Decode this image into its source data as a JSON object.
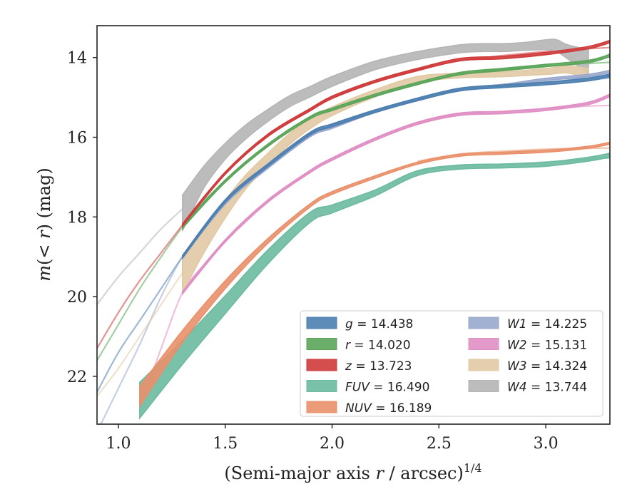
{
  "chart_data": {
    "type": "line",
    "xlabel": "(Semi-major axis r / arcsec)^1/4",
    "xlabel_parts": {
      "prefix": "(Semi-major axis ",
      "var": "r",
      "suffix": " / arcsec)",
      "sup": "1/4"
    },
    "ylabel": "m(< r) (mag)",
    "ylabel_parts": {
      "m": "m",
      "open": "(",
      "lt": "< ",
      "r": "r",
      "close": ")",
      "unit": " (mag)"
    },
    "xlim": [
      0.9,
      3.3
    ],
    "ylim": [
      23.2,
      13.2
    ],
    "y_inverted": true,
    "x_ticks": [
      1.0,
      1.5,
      2.0,
      2.5,
      3.0
    ],
    "x_tick_labels": [
      "1.0",
      "1.5",
      "2.0",
      "2.5",
      "3.0"
    ],
    "y_ticks": [
      14,
      16,
      18,
      20,
      22
    ],
    "y_tick_labels": [
      "14",
      "16",
      "18",
      "20",
      "22"
    ],
    "grid": false,
    "legend_position": "lower-right",
    "series": [
      {
        "name": "g = 14.438",
        "band": "g",
        "mag": "14.438",
        "color": "#4c7fb0",
        "x": [
          1.3,
          1.5,
          1.7,
          1.9,
          2.0,
          2.2,
          2.4,
          2.6,
          2.8,
          3.0,
          3.2,
          3.3
        ],
        "y": [
          19.0,
          17.6,
          16.7,
          15.9,
          15.7,
          15.35,
          15.05,
          14.8,
          14.72,
          14.65,
          14.55,
          14.45
        ],
        "band_width": 0.07,
        "model_x": [
          0.9,
          1.0,
          1.1,
          1.2,
          1.3,
          1.4,
          1.5,
          1.6,
          1.7,
          1.8,
          1.9,
          2.0,
          2.2,
          2.4,
          2.6,
          2.8,
          3.0,
          3.2,
          3.3
        ],
        "model_y": [
          22.4,
          21.4,
          20.6,
          19.8,
          19.0,
          18.3,
          17.6,
          17.1,
          16.7,
          16.3,
          15.9,
          15.7,
          15.35,
          15.05,
          14.82,
          14.72,
          14.63,
          14.5,
          14.45
        ]
      },
      {
        "name": "r = 14.020",
        "band": "r",
        "mag": "14.020",
        "color": "#5aa55a",
        "x": [
          1.3,
          1.5,
          1.7,
          1.9,
          2.0,
          2.2,
          2.4,
          2.6,
          2.8,
          3.0,
          3.2,
          3.3
        ],
        "y": [
          18.25,
          17.1,
          16.2,
          15.5,
          15.3,
          14.95,
          14.65,
          14.4,
          14.3,
          14.2,
          14.1,
          13.95
        ],
        "band_width": 0.06,
        "model_x": [
          0.9,
          1.0,
          1.1,
          1.2,
          1.3,
          1.4,
          1.5,
          1.6,
          1.7,
          1.8,
          1.9,
          2.0,
          2.2,
          2.4,
          2.6,
          2.8,
          3.0,
          3.2,
          3.3
        ],
        "model_y": [
          21.6,
          20.7,
          19.8,
          19.0,
          18.25,
          17.6,
          17.1,
          16.6,
          16.2,
          15.8,
          15.5,
          15.3,
          14.95,
          14.65,
          14.42,
          14.3,
          14.22,
          14.15,
          14.12
        ]
      },
      {
        "name": "z = 13.723",
        "band": "z",
        "mag": "13.723",
        "color": "#cf3b3b",
        "x": [
          1.3,
          1.5,
          1.7,
          1.9,
          2.0,
          2.2,
          2.4,
          2.6,
          2.8,
          3.0,
          3.2,
          3.3
        ],
        "y": [
          18.2,
          16.9,
          15.95,
          15.3,
          15.0,
          14.6,
          14.3,
          14.05,
          14.0,
          13.9,
          13.75,
          13.6
        ],
        "band_width": 0.06,
        "model_x": [
          0.9,
          1.0,
          1.1,
          1.2,
          1.3,
          1.4,
          1.5,
          1.6,
          1.7,
          1.8,
          1.9,
          2.0,
          2.2,
          2.4,
          2.6,
          2.8,
          3.0,
          3.2,
          3.3
        ],
        "model_y": [
          21.3,
          20.4,
          19.6,
          18.9,
          18.2,
          17.5,
          16.9,
          16.4,
          15.95,
          15.6,
          15.3,
          15.0,
          14.6,
          14.3,
          14.08,
          13.95,
          13.85,
          13.78,
          13.75
        ]
      },
      {
        "name": "FUV = 16.490",
        "band": "FUV",
        "mag": "16.490",
        "color": "#6cbaa0",
        "x": [
          1.1,
          1.3,
          1.5,
          1.7,
          1.9,
          2.0,
          2.2,
          2.4,
          2.6,
          2.8,
          3.0,
          3.2,
          3.3
        ],
        "y": [
          22.6,
          21.4,
          20.2,
          19.0,
          18.0,
          17.8,
          17.4,
          16.9,
          16.75,
          16.72,
          16.68,
          16.55,
          16.45
        ],
        "band_width": 0.45,
        "band_widths": [
          0.9,
          0.6,
          0.45,
          0.35,
          0.25,
          0.2,
          0.15,
          0.12,
          0.1,
          0.1,
          0.1,
          0.1,
          0.1
        ],
        "model_x": [
          2.4,
          2.6,
          2.8,
          3.0,
          3.2,
          3.3
        ],
        "model_y": [
          16.85,
          16.7,
          16.68,
          16.62,
          16.55,
          16.52
        ]
      },
      {
        "name": "NUV = 16.189",
        "band": "NUV",
        "mag": "16.189",
        "color": "#e9906a",
        "x": [
          1.1,
          1.3,
          1.5,
          1.7,
          1.9,
          2.0,
          2.2,
          2.4,
          2.6,
          2.8,
          3.0,
          3.2,
          3.3
        ],
        "y": [
          22.5,
          21.0,
          19.7,
          18.6,
          17.7,
          17.4,
          17.0,
          16.65,
          16.45,
          16.4,
          16.35,
          16.25,
          16.15
        ],
        "band_width": 0.15,
        "band_widths": [
          0.5,
          0.3,
          0.2,
          0.12,
          0.08,
          0.07,
          0.06,
          0.05,
          0.05,
          0.05,
          0.05,
          0.05,
          0.05
        ],
        "model_x": [
          2.4,
          2.6,
          2.8,
          3.0,
          3.2,
          3.3
        ],
        "model_y": [
          16.6,
          16.42,
          16.35,
          16.3,
          16.28,
          16.27
        ]
      },
      {
        "name": "W1 = 14.225",
        "band": "W1",
        "mag": "14.225",
        "color": "#98a8cc",
        "x": [
          1.3,
          1.5,
          1.7,
          1.9,
          2.0,
          2.2,
          2.4,
          2.6,
          2.8,
          3.0,
          3.2,
          3.3
        ],
        "y": [
          19.0,
          17.65,
          16.75,
          15.95,
          15.75,
          15.35,
          15.05,
          14.8,
          14.7,
          14.55,
          14.45,
          14.35
        ],
        "band_width": 0.06,
        "model_x": [
          0.9,
          1.0,
          1.1,
          1.2,
          1.3,
          1.4,
          1.5,
          1.6,
          1.7,
          1.8,
          1.9,
          2.0,
          2.2,
          2.4,
          2.6,
          2.8,
          3.0,
          3.2,
          3.3
        ],
        "model_y": [
          23.4,
          22.3,
          21.2,
          20.0,
          19.0,
          18.3,
          17.65,
          17.15,
          16.75,
          16.3,
          15.95,
          15.75,
          15.35,
          15.05,
          14.82,
          14.7,
          14.62,
          14.55,
          14.52
        ]
      },
      {
        "name": "W2 = 15.131",
        "band": "W2",
        "mag": "15.131",
        "color": "#e08fc4",
        "x": [
          1.3,
          1.5,
          1.7,
          1.9,
          2.0,
          2.2,
          2.4,
          2.6,
          2.8,
          3.0,
          3.2,
          3.3
        ],
        "y": [
          19.9,
          18.6,
          17.6,
          16.85,
          16.55,
          16.05,
          15.65,
          15.42,
          15.38,
          15.3,
          15.15,
          14.95
        ],
        "band_width": 0.06,
        "model_x": [
          1.1,
          1.2,
          1.3,
          1.4,
          1.5,
          1.6,
          1.7,
          1.8,
          1.9,
          2.0,
          2.2,
          2.4,
          2.6,
          2.8,
          3.0,
          3.2,
          3.3
        ],
        "model_y": [
          22.8,
          21.3,
          19.9,
          19.2,
          18.6,
          18.1,
          17.6,
          17.2,
          16.85,
          16.55,
          16.05,
          15.65,
          15.42,
          15.35,
          15.28,
          15.22,
          15.2
        ]
      },
      {
        "name": "W3 = 14.324",
        "band": "W3",
        "mag": "14.324",
        "color": "#e2c9a4",
        "x": [
          1.3,
          1.4,
          1.5,
          1.6,
          1.7,
          1.8,
          1.9,
          2.0,
          2.2,
          2.4,
          2.6,
          2.8,
          3.0,
          3.1,
          3.2
        ],
        "y": [
          19.5,
          18.6,
          17.8,
          17.1,
          16.55,
          16.05,
          15.65,
          15.35,
          14.9,
          14.55,
          14.45,
          14.42,
          14.35,
          14.3,
          14.4
        ],
        "band_widths": [
          0.8,
          0.6,
          0.45,
          0.35,
          0.3,
          0.28,
          0.25,
          0.22,
          0.18,
          0.15,
          0.12,
          0.12,
          0.15,
          0.18,
          0.25
        ],
        "band_width": 0.3,
        "model_x": [
          0.9,
          1.0,
          1.1,
          1.2,
          1.3
        ],
        "model_y": [
          22.5,
          21.8,
          21.0,
          20.2,
          19.4
        ]
      },
      {
        "name": "W4 = 13.744",
        "band": "W4",
        "mag": "13.744",
        "color": "#b5b5b5",
        "x": [
          1.3,
          1.4,
          1.5,
          1.6,
          1.7,
          1.8,
          1.9,
          2.0,
          2.2,
          2.4,
          2.6,
          2.7,
          2.8,
          2.9,
          3.0,
          3.05,
          3.1,
          3.2
        ],
        "y": [
          17.9,
          17.0,
          16.35,
          15.85,
          15.45,
          15.1,
          14.85,
          14.6,
          14.2,
          13.95,
          13.78,
          13.75,
          13.75,
          13.72,
          13.68,
          13.7,
          13.85,
          14.1
        ],
        "band_widths": [
          0.9,
          0.55,
          0.4,
          0.35,
          0.3,
          0.28,
          0.26,
          0.25,
          0.22,
          0.2,
          0.2,
          0.2,
          0.2,
          0.2,
          0.25,
          0.3,
          0.35,
          0.6
        ],
        "band_width": 0.3,
        "model_x": [
          0.9,
          1.0,
          1.1,
          1.2,
          1.3
        ],
        "model_y": [
          20.2,
          19.5,
          18.9,
          18.3,
          17.8
        ]
      }
    ],
    "legend_columns": [
      [
        "g",
        "r",
        "z",
        "FUV",
        "NUV"
      ],
      [
        "W1",
        "W2",
        "W3",
        "W4"
      ]
    ]
  }
}
